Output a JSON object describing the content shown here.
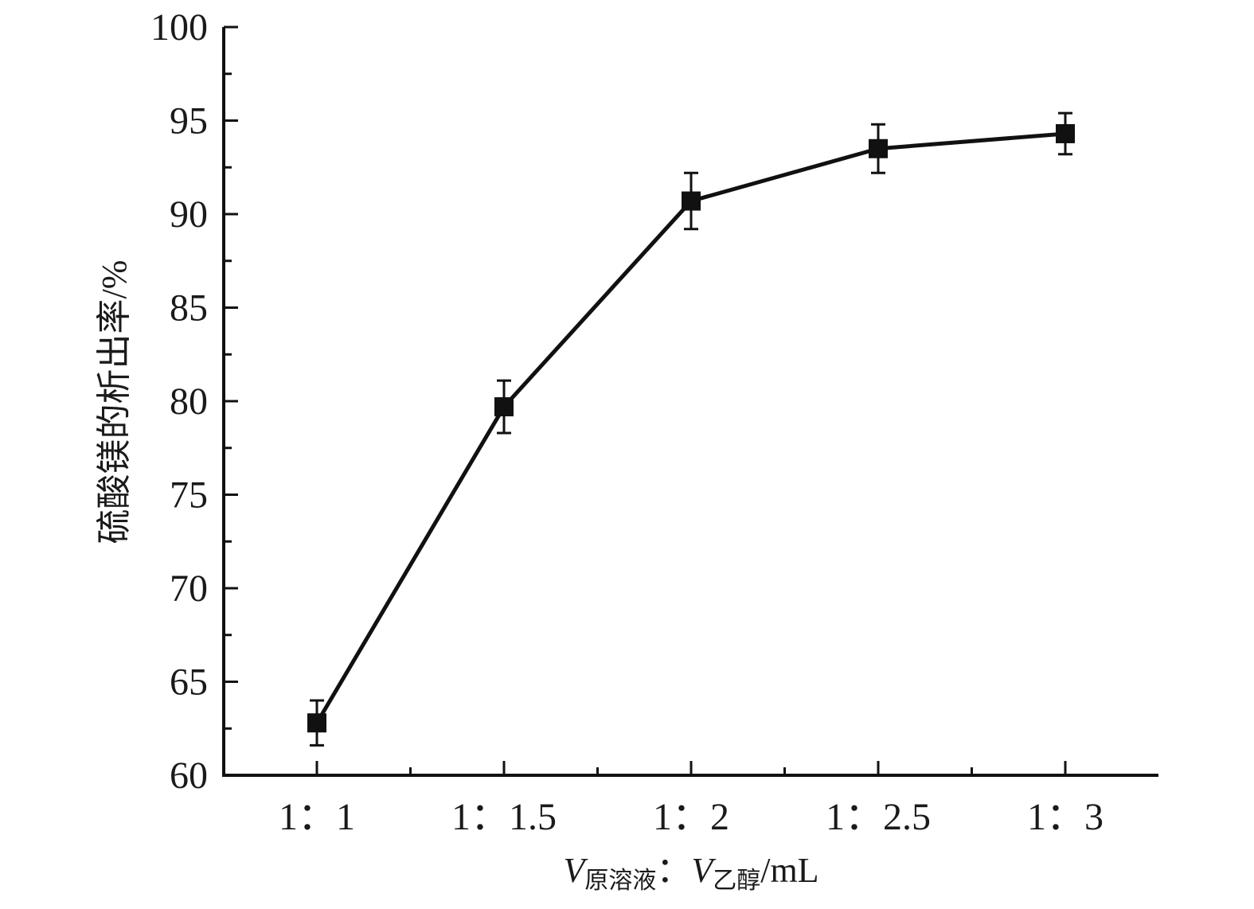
{
  "chart_data": {
    "type": "line",
    "title": "",
    "xlabel": {
      "v1": "V",
      "sub1": "原溶液",
      "colon": "：",
      "v2": "V",
      "sub2": "乙醇",
      "unit": "/mL"
    },
    "ylabel": "硫酸镁的析出率/%",
    "categories": [
      "1：1",
      "1：1.5",
      "1：2",
      "1：2.5",
      "1：3"
    ],
    "series": [
      {
        "values": [
          62.8,
          79.7,
          90.7,
          93.5,
          94.3
        ],
        "error": [
          1.2,
          1.4,
          1.5,
          1.3,
          1.1
        ]
      }
    ],
    "ylim": [
      60,
      100
    ],
    "yticks": [
      60,
      65,
      70,
      75,
      80,
      85,
      90,
      95,
      100
    ],
    "grid": false,
    "colors": {
      "line": "#111111",
      "axis": "#111111"
    },
    "marker": "square"
  }
}
